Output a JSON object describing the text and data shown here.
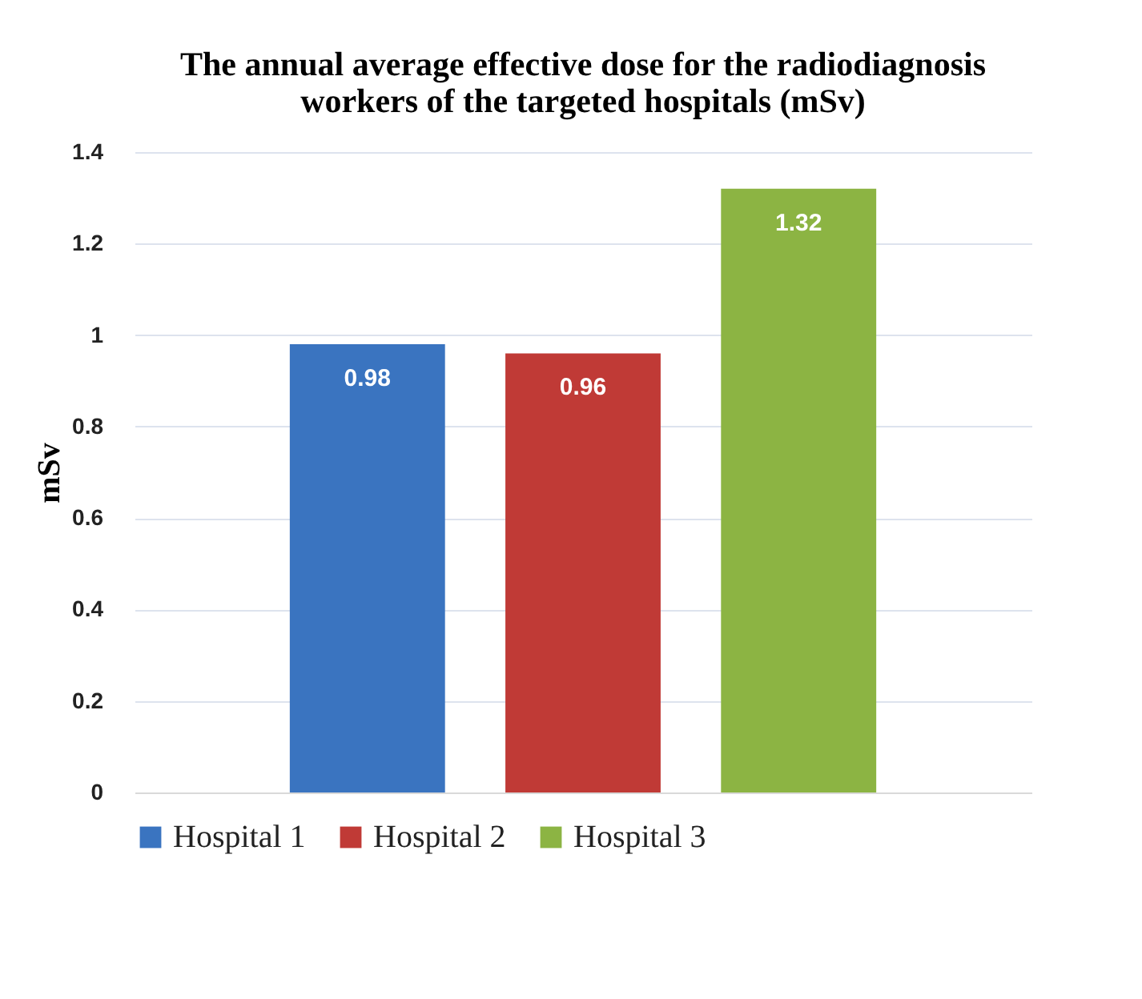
{
  "chart_data": {
    "type": "bar",
    "title": "The annual average effective dose for the radiodiagnosis workers of the targeted hospitals  (mSv)",
    "ylabel": "mSv",
    "categories": [
      null
    ],
    "series": [
      {
        "name": "Hospital 1",
        "color": "#3a74c0",
        "values": [
          0.98
        ]
      },
      {
        "name": "Hospital 2",
        "color": "#c03a36",
        "values": [
          0.96
        ]
      },
      {
        "name": "Hospital 3",
        "color": "#8cb443",
        "values": [
          1.32
        ]
      }
    ],
    "ylim": [
      0,
      1.4
    ],
    "yticks": [
      0,
      0.2,
      0.4,
      0.6,
      0.8,
      1,
      1.2,
      1.4
    ],
    "grid": "y",
    "legend": "bottom",
    "data_labels": true
  }
}
